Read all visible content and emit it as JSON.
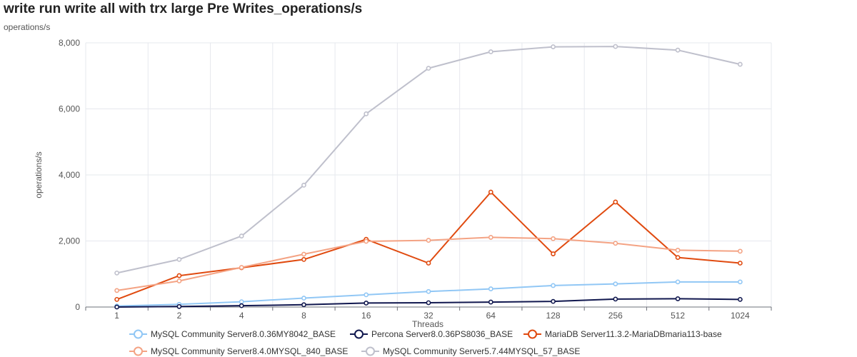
{
  "title": "write run write all with trx large Pre Writes_operations/s",
  "subtitle": "operations/s",
  "chart_data": {
    "type": "line",
    "xlabel": "Threads",
    "ylabel": "operations/s",
    "ylim": [
      0,
      8000
    ],
    "yticks": [
      "0",
      "2,000",
      "4,000",
      "6,000",
      "8,000"
    ],
    "categories": [
      "1",
      "2",
      "4",
      "8",
      "16",
      "32",
      "64",
      "128",
      "256",
      "512",
      "1024"
    ],
    "grid": true,
    "legend_position": "bottom",
    "series": [
      {
        "name": "MySQL Community Server8.0.36MY8042_BASE",
        "color": "#91c7f5",
        "values": [
          30,
          80,
          160,
          270,
          370,
          470,
          550,
          650,
          700,
          760,
          760
        ]
      },
      {
        "name": "Percona Server8.0.36PS8036_BASE",
        "color": "#11184f",
        "values": [
          0,
          15,
          40,
          70,
          120,
          130,
          150,
          170,
          240,
          250,
          230
        ]
      },
      {
        "name": "MariaDB Server11.3.2-MariaDBmaria113-base",
        "color": "#e04a0f",
        "values": [
          230,
          950,
          1190,
          1440,
          2050,
          1330,
          3480,
          1610,
          3180,
          1500,
          1330
        ]
      },
      {
        "name": "MySQL Community Server8.4.0MYSQL_840_BASE",
        "color": "#f4a384",
        "values": [
          500,
          790,
          1200,
          1600,
          1990,
          2020,
          2110,
          2070,
          1930,
          1720,
          1690
        ]
      },
      {
        "name": "MySQL Community Server5.7.44MYSQL_57_BASE",
        "color": "#bfc0cc",
        "values": [
          1030,
          1440,
          2150,
          3690,
          5850,
          7230,
          7730,
          7880,
          7890,
          7780,
          7350
        ]
      }
    ]
  }
}
